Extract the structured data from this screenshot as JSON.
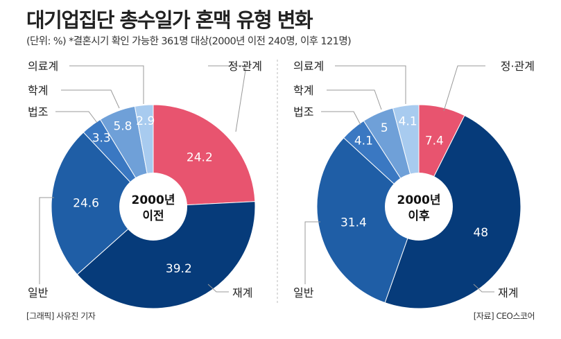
{
  "title": "대기업집단 총수일가 혼맥 유형 변화",
  "subtitle": "(단위: %) *결혼시기 확인 가능한 361명 대상(2000년 이전 240명, 이후 121명)",
  "footer": {
    "credit": "[그래픽] 사유진 기자",
    "source": "[자료] CEO스코어"
  },
  "chart_data": [
    {
      "type": "pie",
      "title": "",
      "center_label": [
        "2000년",
        "이전"
      ],
      "categories": [
        "정·관계",
        "재계",
        "일반",
        "법조",
        "학계",
        "의료계"
      ],
      "values": [
        24.2,
        39.2,
        24.6,
        3.3,
        5.8,
        2.9
      ],
      "colors": [
        "#e8546f",
        "#063b7a",
        "#1f5ea6",
        "#3a78c2",
        "#6fa0d8",
        "#a8cbef"
      ]
    },
    {
      "type": "pie",
      "title": "",
      "center_label": [
        "2000년",
        "이후"
      ],
      "categories": [
        "정·관계",
        "재계",
        "일반",
        "법조",
        "학계",
        "의료계"
      ],
      "values": [
        7.4,
        48,
        31.4,
        4.1,
        5,
        4.1
      ],
      "colors": [
        "#e8546f",
        "#063b7a",
        "#1f5ea6",
        "#3a78c2",
        "#6fa0d8",
        "#a8cbef"
      ]
    }
  ]
}
